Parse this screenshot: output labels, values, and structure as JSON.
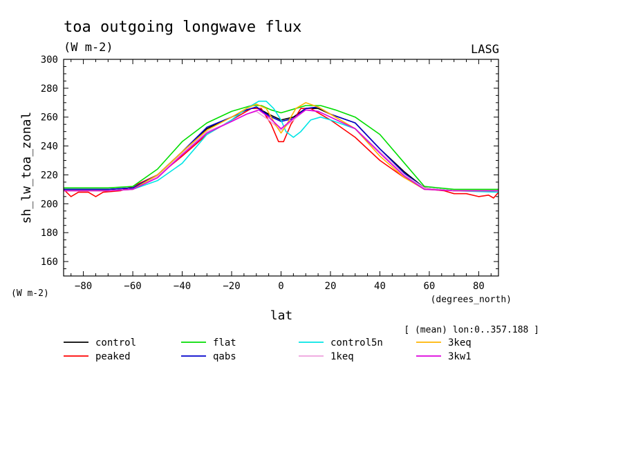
{
  "header": {
    "title": "toa outgoing longwave flux",
    "units": "(W m-2)",
    "source": "LASG",
    "left_units": "(W m-2)",
    "x_units": "(degrees_north)",
    "mean_note": "[ (mean) lon:0..357.188 ]"
  },
  "chart_data": {
    "type": "line",
    "title": "toa outgoing longwave flux",
    "xlabel": "lat",
    "ylabel": "sh_lw_toa_zonal",
    "xlim": [
      -88,
      88
    ],
    "ylim": [
      150,
      300
    ],
    "x_ticks": [
      -80,
      -60,
      -40,
      -20,
      0,
      20,
      40,
      60,
      80
    ],
    "y_ticks": [
      160,
      180,
      200,
      220,
      240,
      260,
      280,
      300
    ],
    "legend_position": "bottom",
    "series": [
      {
        "name": "control",
        "color": "#000000",
        "points": [
          [
            -88,
            210
          ],
          [
            -70,
            210
          ],
          [
            -60,
            211
          ],
          [
            -50,
            220
          ],
          [
            -40,
            236
          ],
          [
            -30,
            252
          ],
          [
            -20,
            260
          ],
          [
            -14,
            265
          ],
          [
            -10,
            267
          ],
          [
            -5,
            262
          ],
          [
            0,
            258
          ],
          [
            5,
            260
          ],
          [
            10,
            266
          ],
          [
            15,
            266
          ],
          [
            20,
            262
          ],
          [
            30,
            256
          ],
          [
            40,
            238
          ],
          [
            50,
            222
          ],
          [
            58,
            211
          ],
          [
            70,
            209
          ],
          [
            88,
            209
          ]
        ]
      },
      {
        "name": "peaked",
        "color": "#ff0000",
        "points": [
          [
            -88,
            210
          ],
          [
            -85,
            205
          ],
          [
            -82,
            208
          ],
          [
            -78,
            208
          ],
          [
            -75,
            205
          ],
          [
            -72,
            208
          ],
          [
            -65,
            209
          ],
          [
            -60,
            212
          ],
          [
            -55,
            216
          ],
          [
            -50,
            220
          ],
          [
            -45,
            226
          ],
          [
            -40,
            233
          ],
          [
            -30,
            248
          ],
          [
            -20,
            258
          ],
          [
            -12,
            266
          ],
          [
            -8,
            266
          ],
          [
            -4,
            255
          ],
          [
            -1,
            243
          ],
          [
            1,
            243
          ],
          [
            4,
            255
          ],
          [
            8,
            266
          ],
          [
            12,
            266
          ],
          [
            20,
            258
          ],
          [
            30,
            246
          ],
          [
            40,
            230
          ],
          [
            50,
            218
          ],
          [
            55,
            214
          ],
          [
            60,
            210
          ],
          [
            66,
            209
          ],
          [
            70,
            207
          ],
          [
            75,
            207
          ],
          [
            80,
            205
          ],
          [
            84,
            206
          ],
          [
            86,
            204
          ],
          [
            88,
            208
          ]
        ]
      },
      {
        "name": "flat",
        "color": "#00dd00",
        "points": [
          [
            -88,
            211
          ],
          [
            -70,
            211
          ],
          [
            -60,
            212
          ],
          [
            -50,
            224
          ],
          [
            -40,
            243
          ],
          [
            -30,
            256
          ],
          [
            -20,
            264
          ],
          [
            -12,
            268
          ],
          [
            -8,
            268
          ],
          [
            -4,
            265
          ],
          [
            0,
            263
          ],
          [
            4,
            265
          ],
          [
            10,
            268
          ],
          [
            16,
            268
          ],
          [
            22,
            265
          ],
          [
            30,
            260
          ],
          [
            40,
            248
          ],
          [
            50,
            228
          ],
          [
            58,
            212
          ],
          [
            70,
            210
          ],
          [
            88,
            210
          ]
        ]
      },
      {
        "name": "qabs",
        "color": "#0000cc",
        "points": [
          [
            -88,
            210
          ],
          [
            -70,
            210
          ],
          [
            -60,
            211
          ],
          [
            -50,
            220
          ],
          [
            -40,
            236
          ],
          [
            -30,
            253
          ],
          [
            -20,
            260
          ],
          [
            -14,
            265
          ],
          [
            -10,
            267
          ],
          [
            -5,
            261
          ],
          [
            0,
            257
          ],
          [
            5,
            259
          ],
          [
            10,
            266
          ],
          [
            15,
            267
          ],
          [
            20,
            262
          ],
          [
            30,
            256
          ],
          [
            40,
            238
          ],
          [
            50,
            221
          ],
          [
            58,
            211
          ],
          [
            70,
            209
          ],
          [
            88,
            209
          ]
        ]
      },
      {
        "name": "control5n",
        "color": "#00e5e5",
        "points": [
          [
            -88,
            209
          ],
          [
            -70,
            209
          ],
          [
            -60,
            210
          ],
          [
            -50,
            216
          ],
          [
            -40,
            228
          ],
          [
            -30,
            248
          ],
          [
            -20,
            258
          ],
          [
            -14,
            266
          ],
          [
            -9,
            271
          ],
          [
            -6,
            271
          ],
          [
            -3,
            266
          ],
          [
            0,
            258
          ],
          [
            2,
            250
          ],
          [
            5,
            246
          ],
          [
            8,
            250
          ],
          [
            12,
            258
          ],
          [
            16,
            260
          ],
          [
            20,
            258
          ],
          [
            30,
            252
          ],
          [
            40,
            236
          ],
          [
            50,
            219
          ],
          [
            58,
            211
          ],
          [
            70,
            209
          ],
          [
            88,
            208
          ]
        ]
      },
      {
        "name": "1keq",
        "color": "#eea0dd",
        "points": [
          [
            -88,
            209
          ],
          [
            -70,
            209
          ],
          [
            -60,
            210
          ],
          [
            -50,
            219
          ],
          [
            -40,
            235
          ],
          [
            -30,
            250
          ],
          [
            -20,
            257
          ],
          [
            -14,
            262
          ],
          [
            -10,
            264
          ],
          [
            -5,
            258
          ],
          [
            0,
            251
          ],
          [
            5,
            258
          ],
          [
            10,
            265
          ],
          [
            15,
            264
          ],
          [
            20,
            260
          ],
          [
            30,
            252
          ],
          [
            40,
            236
          ],
          [
            50,
            220
          ],
          [
            58,
            211
          ],
          [
            70,
            209
          ],
          [
            88,
            209
          ]
        ]
      },
      {
        "name": "3keq",
        "color": "#ffb400",
        "points": [
          [
            -88,
            209
          ],
          [
            -70,
            209
          ],
          [
            -60,
            210
          ],
          [
            -50,
            220
          ],
          [
            -40,
            236
          ],
          [
            -30,
            251
          ],
          [
            -20,
            260
          ],
          [
            -14,
            266
          ],
          [
            -10,
            269
          ],
          [
            -6,
            266
          ],
          [
            -2,
            254
          ],
          [
            0,
            249
          ],
          [
            2,
            254
          ],
          [
            6,
            266
          ],
          [
            10,
            270
          ],
          [
            15,
            267
          ],
          [
            20,
            262
          ],
          [
            30,
            252
          ],
          [
            40,
            233
          ],
          [
            50,
            218
          ],
          [
            58,
            210
          ],
          [
            70,
            209
          ],
          [
            88,
            209
          ]
        ]
      },
      {
        "name": "3kw1",
        "color": "#dd00dd",
        "points": [
          [
            -88,
            209
          ],
          [
            -70,
            209
          ],
          [
            -60,
            210
          ],
          [
            -50,
            218
          ],
          [
            -40,
            234
          ],
          [
            -30,
            249
          ],
          [
            -20,
            257
          ],
          [
            -14,
            262
          ],
          [
            -9,
            265
          ],
          [
            -5,
            260
          ],
          [
            0,
            252
          ],
          [
            5,
            259
          ],
          [
            10,
            265
          ],
          [
            15,
            264
          ],
          [
            20,
            260
          ],
          [
            30,
            252
          ],
          [
            40,
            235
          ],
          [
            50,
            219
          ],
          [
            58,
            210
          ],
          [
            70,
            209
          ],
          [
            88,
            209
          ]
        ]
      }
    ]
  }
}
